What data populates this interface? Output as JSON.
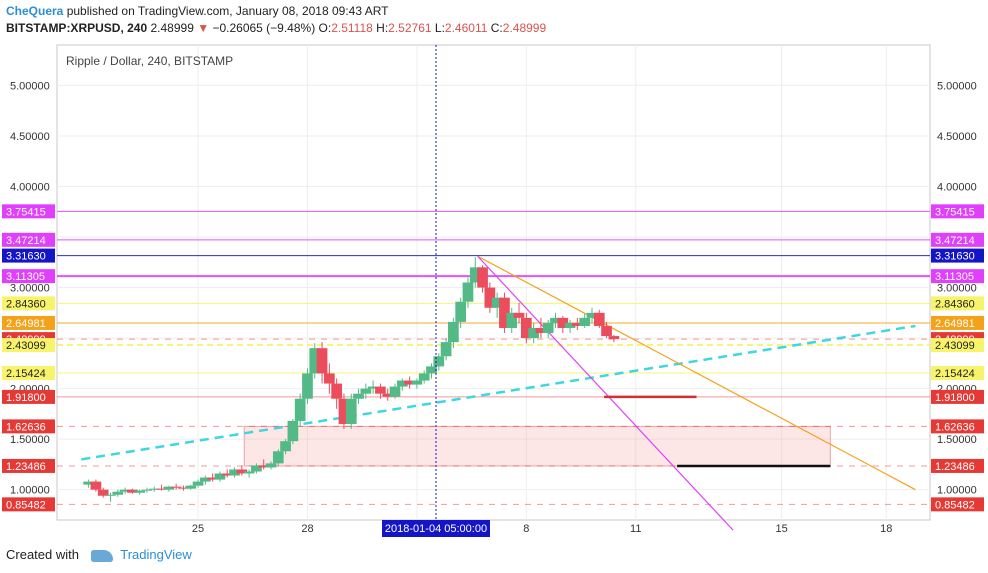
{
  "header": {
    "author": "CheQuera",
    "published_text": "published on TradingView.com, January 08, 2018 09:43 ART",
    "symbol": "BITSTAMP:XRPUSD, 240",
    "last": "2.48999",
    "change": "−0.26065 (−9.48%)",
    "o_label": "O:",
    "o": "2.51118",
    "h_label": "H:",
    "h": "2.52761",
    "l_label": "L:",
    "l": "2.46011",
    "c_label": "C:",
    "c": "2.48999"
  },
  "footer": {
    "created_with": "Created with",
    "brand": "TradingView",
    "logo_icon": "tradingview-logo-icon"
  },
  "chart_data": {
    "type": "candlestick",
    "title": "Ripple / Dollar, 240, BITSTAMP",
    "y_axis": {
      "min": 0.7,
      "max": 5.4,
      "ticks": [
        "5.00000",
        "4.50000",
        "4.00000",
        "3.50000",
        "3.00000",
        "2.50000",
        "2.00000",
        "1.50000",
        "1.00000"
      ]
    },
    "x_axis": {
      "ticks": [
        "25",
        "28",
        "2018",
        "8",
        "11",
        "15",
        "18"
      ],
      "crosshair_label": "2018-01-04 05:00:00"
    },
    "price_levels": [
      {
        "value": "3.75415",
        "color": "#e040fb"
      },
      {
        "value": "3.47214",
        "color": "#e040fb"
      },
      {
        "value": "3.31630",
        "color": "#1515c8"
      },
      {
        "value": "3.11305",
        "color": "#e040fb"
      },
      {
        "value": "2.84360",
        "color": "#f7f36a"
      },
      {
        "value": "2.64981",
        "color": "#f4a21a"
      },
      {
        "value": "2.48999",
        "color": "#e53935"
      },
      {
        "value": "2.43099",
        "color": "#f7f36a"
      },
      {
        "value": "2.15424",
        "color": "#f7f36a"
      },
      {
        "value": "1.91800",
        "color": "#e53935"
      },
      {
        "value": "1.62636",
        "color": "#e53935"
      },
      {
        "value": "1.23486",
        "color": "#e53935"
      },
      {
        "value": "0.85482",
        "color": "#e53935"
      }
    ],
    "candles": [
      [
        0.0,
        1.05,
        1.1,
        1.02,
        1.08
      ],
      [
        0.3,
        1.08,
        1.1,
        0.98,
        1.0
      ],
      [
        0.6,
        1.0,
        1.02,
        0.92,
        0.94
      ],
      [
        0.9,
        0.94,
        0.97,
        0.88,
        0.95
      ],
      [
        1.2,
        0.95,
        1.0,
        0.93,
        0.98
      ],
      [
        1.5,
        0.98,
        1.02,
        0.96,
        1.0
      ],
      [
        1.8,
        1.0,
        1.01,
        0.96,
        0.97
      ],
      [
        2.1,
        0.97,
        1.0,
        0.95,
        0.99
      ],
      [
        2.4,
        0.99,
        1.02,
        0.97,
        1.0
      ],
      [
        2.7,
        1.0,
        1.03,
        0.98,
        1.01
      ],
      [
        3.0,
        1.01,
        1.05,
        0.99,
        1.0
      ],
      [
        3.3,
        1.0,
        1.04,
        0.98,
        1.03
      ],
      [
        3.6,
        1.03,
        1.06,
        1.0,
        1.02
      ],
      [
        3.9,
        1.02,
        1.04,
        0.99,
        1.01
      ],
      [
        4.2,
        1.01,
        1.05,
        1.0,
        1.04
      ],
      [
        4.5,
        1.04,
        1.1,
        1.02,
        1.08
      ],
      [
        4.8,
        1.08,
        1.14,
        1.05,
        1.12
      ],
      [
        5.1,
        1.12,
        1.16,
        1.08,
        1.1
      ],
      [
        5.4,
        1.1,
        1.18,
        1.08,
        1.16
      ],
      [
        5.7,
        1.16,
        1.2,
        1.12,
        1.14
      ],
      [
        6.0,
        1.14,
        1.22,
        1.12,
        1.2
      ],
      [
        6.3,
        1.2,
        1.24,
        1.14,
        1.16
      ],
      [
        6.6,
        1.16,
        1.2,
        1.12,
        1.18
      ],
      [
        6.9,
        1.18,
        1.26,
        1.16,
        1.24
      ],
      [
        7.2,
        1.24,
        1.3,
        1.2,
        1.22
      ],
      [
        7.5,
        1.22,
        1.28,
        1.2,
        1.26
      ],
      [
        7.8,
        1.26,
        1.4,
        1.24,
        1.38
      ],
      [
        8.1,
        1.38,
        1.5,
        1.35,
        1.48
      ],
      [
        8.4,
        1.48,
        1.7,
        1.45,
        1.68
      ],
      [
        8.7,
        1.68,
        1.95,
        1.62,
        1.9
      ],
      [
        9.0,
        1.9,
        2.2,
        1.85,
        2.15
      ],
      [
        9.3,
        2.15,
        2.45,
        2.1,
        2.4
      ],
      [
        9.6,
        2.4,
        2.46,
        2.05,
        2.15
      ],
      [
        9.9,
        2.15,
        2.25,
        1.95,
        2.05
      ],
      [
        10.2,
        2.05,
        2.1,
        1.8,
        1.9
      ],
      [
        10.5,
        1.9,
        1.95,
        1.6,
        1.65
      ],
      [
        10.8,
        1.65,
        1.95,
        1.6,
        1.9
      ],
      [
        11.1,
        1.9,
        2.0,
        1.85,
        1.95
      ],
      [
        11.4,
        1.95,
        2.05,
        1.9,
        2.0
      ],
      [
        11.7,
        2.0,
        2.08,
        1.95,
        2.02
      ],
      [
        12.0,
        2.02,
        2.05,
        1.9,
        1.95
      ],
      [
        12.3,
        1.95,
        2.0,
        1.88,
        1.92
      ],
      [
        12.6,
        1.92,
        2.05,
        1.9,
        2.02
      ],
      [
        12.9,
        2.02,
        2.1,
        1.98,
        2.08
      ],
      [
        13.2,
        2.08,
        2.12,
        2.0,
        2.04
      ],
      [
        13.5,
        2.04,
        2.1,
        2.0,
        2.08
      ],
      [
        13.8,
        2.08,
        2.18,
        2.05,
        2.15
      ],
      [
        14.1,
        2.15,
        2.25,
        2.1,
        2.22
      ],
      [
        14.4,
        2.22,
        2.35,
        2.18,
        2.32
      ],
      [
        14.7,
        2.32,
        2.5,
        2.28,
        2.46
      ],
      [
        15.0,
        2.46,
        2.7,
        2.4,
        2.66
      ],
      [
        15.3,
        2.66,
        2.9,
        2.6,
        2.86
      ],
      [
        15.6,
        2.86,
        3.1,
        2.8,
        3.05
      ],
      [
        15.9,
        3.05,
        3.3,
        3.0,
        3.2
      ],
      [
        16.2,
        3.2,
        3.22,
        2.95,
        3.0
      ],
      [
        16.5,
        3.0,
        3.05,
        2.75,
        2.8
      ],
      [
        16.8,
        2.8,
        2.95,
        2.7,
        2.9
      ],
      [
        17.1,
        2.9,
        2.95,
        2.55,
        2.6
      ],
      [
        17.4,
        2.6,
        2.8,
        2.55,
        2.75
      ],
      [
        17.7,
        2.75,
        2.85,
        2.65,
        2.7
      ],
      [
        18.0,
        2.7,
        2.75,
        2.45,
        2.5
      ],
      [
        18.3,
        2.5,
        2.65,
        2.45,
        2.6
      ],
      [
        18.6,
        2.6,
        2.7,
        2.5,
        2.55
      ],
      [
        18.9,
        2.55,
        2.68,
        2.5,
        2.65
      ],
      [
        19.2,
        2.65,
        2.75,
        2.6,
        2.7
      ],
      [
        19.5,
        2.7,
        2.72,
        2.55,
        2.6
      ],
      [
        19.8,
        2.6,
        2.68,
        2.55,
        2.65
      ],
      [
        20.1,
        2.65,
        2.7,
        2.58,
        2.62
      ],
      [
        20.4,
        2.62,
        2.74,
        2.6,
        2.7
      ],
      [
        20.7,
        2.7,
        2.8,
        2.65,
        2.75
      ],
      [
        21.0,
        2.75,
        2.78,
        2.6,
        2.62
      ],
      [
        21.3,
        2.62,
        2.66,
        2.5,
        2.52
      ],
      [
        21.6,
        2.52,
        2.53,
        2.46,
        2.49
      ]
    ],
    "trendlines": [
      {
        "name": "cyan-uptrend",
        "color": "#3ed6e0",
        "dash": true,
        "p1": [
          -0.3,
          1.3
        ],
        "p2": [
          34.0,
          2.62
        ]
      },
      {
        "name": "orange-downtrend",
        "color": "#f4a21a",
        "dash": false,
        "p1": [
          16.0,
          3.31
        ],
        "p2": [
          34.0,
          1.0
        ]
      },
      {
        "name": "magenta-downtrend",
        "color": "#e040fb",
        "dash": false,
        "p1": [
          16.0,
          3.31
        ],
        "p2": [
          26.5,
          0.6
        ]
      }
    ],
    "horizontal_segments": [
      {
        "name": "red-target-segment",
        "color": "#d32f2f",
        "value": 1.918,
        "x1": 21.2,
        "x2": 25.0
      },
      {
        "name": "black-target-segment",
        "color": "#111111",
        "value": 1.2348,
        "x1": 24.2,
        "x2": 30.5
      }
    ],
    "zone": {
      "from_x": 6.4,
      "to_x": 30.5,
      "low": 1.2348,
      "high": 1.6264
    },
    "legend": "none",
    "grid": true
  }
}
